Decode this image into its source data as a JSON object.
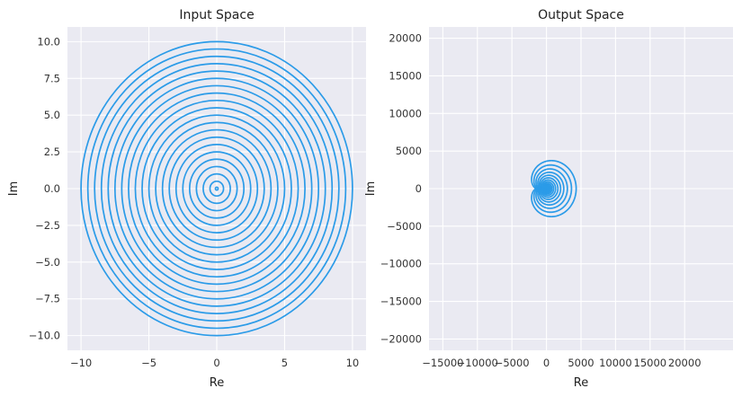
{
  "chart_data": [
    {
      "type": "line",
      "title": "Input Space",
      "xlabel": "Re",
      "ylabel": "Im",
      "xlim": [
        -11,
        11
      ],
      "ylim": [
        -11,
        11
      ],
      "xticks": [
        -10,
        -5,
        0,
        5,
        10
      ],
      "xtick_labels": [
        "−10",
        "−5",
        "0",
        "5",
        "10"
      ],
      "yticks": [
        -10,
        -7.5,
        -5,
        -2.5,
        0,
        2.5,
        5,
        7.5,
        10
      ],
      "ytick_labels": [
        "−10.0",
        "−7.5",
        "−5.0",
        "−2.5",
        "0.0",
        "2.5",
        "5.0",
        "7.5",
        "10.0"
      ],
      "grid": true,
      "color": "#2b9be8",
      "series": [
        {
          "shape": "concentric-circles",
          "center": [
            0,
            0
          ],
          "radii": [
            0.1,
            0.5,
            1.0,
            1.5,
            2.0,
            2.5,
            3.0,
            3.5,
            4.0,
            4.5,
            5.0,
            5.5,
            6.0,
            6.5,
            7.0,
            7.5,
            8.0,
            8.5,
            9.0,
            9.5,
            10.0
          ]
        }
      ]
    },
    {
      "type": "line",
      "title": "Output Space",
      "xlabel": "Re",
      "ylabel": "Im",
      "xlim": [
        -17000,
        27000
      ],
      "ylim": [
        -21500,
        21500
      ],
      "xticks": [
        -15000,
        -10000,
        -5000,
        0,
        5000,
        10000,
        15000,
        20000
      ],
      "xtick_labels": [
        "−15000",
        "−10000",
        "−5000",
        "0",
        "5000",
        "10000",
        "15000",
        "20000"
      ],
      "yticks": [
        -20000,
        -15000,
        -10000,
        -5000,
        0,
        5000,
        10000,
        15000,
        20000
      ],
      "ytick_labels": [
        "−20000",
        "−15000",
        "−10000",
        "−5000",
        "0",
        "5000",
        "10000",
        "15000",
        "20000"
      ],
      "grid": true,
      "color": "#2b9be8",
      "series": [
        {
          "shape": "image-of-circles-under-polynomial",
          "radii": [
            1.0,
            1.5,
            2.0,
            2.5,
            3.0,
            3.5,
            4.0,
            4.5,
            5.0,
            5.5,
            6.0,
            6.5,
            7.0,
            7.5,
            8.0,
            8.5,
            9.0,
            9.5,
            10.0
          ]
        }
      ]
    }
  ]
}
